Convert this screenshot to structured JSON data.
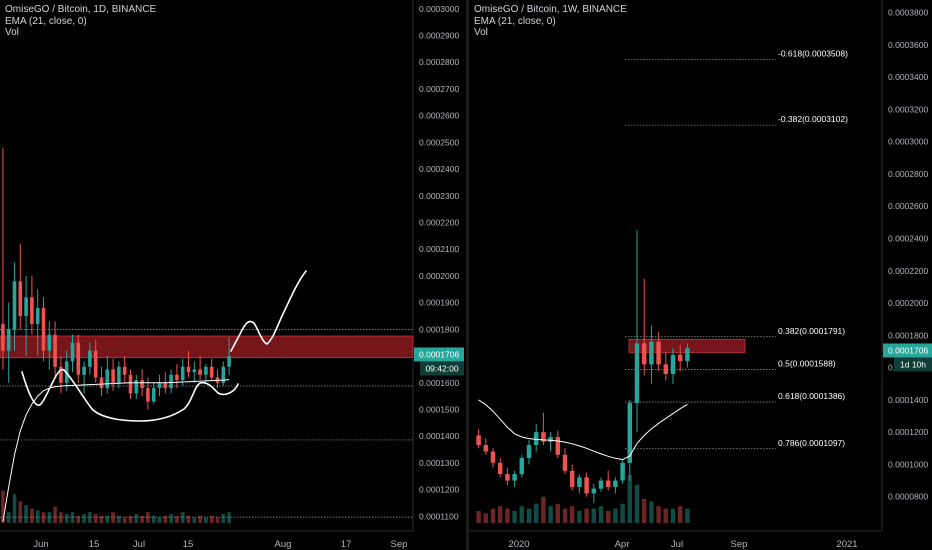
{
  "colors": {
    "up": "#26a69a",
    "down": "#ef5350",
    "zone_fill": "#8b1a1f",
    "zone_stroke": "#c8323a",
    "ema": "#ffffff",
    "grid": "#9e9e9e",
    "badge_green": "#26a69a",
    "axis_text": "#b2b5be"
  },
  "chart_data": [
    {
      "type": "candlestick",
      "title": "OmiseGO / Bitcoin, 1D, BINANCE",
      "legend": [
        "EMA (21, close, 0)",
        "Vol"
      ],
      "price_axis_ticks": [
        "0.0003000",
        "0.0002900",
        "0.0002800",
        "0.0002700",
        "0.0002600",
        "0.0002500",
        "0.0002400",
        "0.0002300",
        "0.0002200",
        "0.0002100",
        "0.0002000",
        "0.0001900",
        "0.0001800",
        "0.0001700",
        "0.0001600",
        "0.0001500",
        "0.0001400",
        "0.0001300",
        "0.0001200",
        "0.0001100"
      ],
      "price_axis_tick_values": [
        0.0003,
        0.00029,
        0.00028,
        0.00027,
        0.00026,
        0.00025,
        0.00024,
        0.00023,
        0.00022,
        0.00021,
        0.0002,
        0.00019,
        0.00018,
        0.00017,
        0.00016,
        0.00015,
        0.00014,
        0.00013,
        0.00012,
        0.00011
      ],
      "x_ticks": [
        "Jun",
        "15",
        "Jul",
        "15",
        "Aug",
        "17",
        "Sep"
      ],
      "ylim": [
        0.0001075,
        0.0003018
      ],
      "last_price": "0.0001706",
      "last_price_value": 0.0001706,
      "countdown": "09:42:00",
      "resistance_zone": [
        0.0001694,
        0.0001775
      ],
      "horizontal_levels": [
        0.00018,
        0.0001588,
        0.0001386,
        0.0001097
      ],
      "candles": [
        [
          0.000182,
          0.000248,
          0.000165,
          0.000172
        ],
        [
          0.000172,
          0.00019,
          0.00016,
          0.00018
        ],
        [
          0.00018,
          0.000205,
          0.000172,
          0.000198
        ],
        [
          0.000198,
          0.000212,
          0.00018,
          0.000185
        ],
        [
          0.000185,
          0.0002,
          0.00017,
          0.000192
        ],
        [
          0.000192,
          0.0002,
          0.000178,
          0.000182
        ],
        [
          0.000182,
          0.000195,
          0.00017,
          0.000188
        ],
        [
          0.000188,
          0.000192,
          0.000168,
          0.000172
        ],
        [
          0.000172,
          0.000183,
          0.000165,
          0.000178
        ],
        [
          0.000178,
          0.000183,
          0.000162,
          0.000166
        ],
        [
          0.000166,
          0.00017,
          0.000156,
          0.00016
        ],
        [
          0.00016,
          0.000172,
          0.000157,
          0.000168
        ],
        [
          0.000168,
          0.000178,
          0.000164,
          0.000175
        ],
        [
          0.000175,
          0.000178,
          0.00016,
          0.000163
        ],
        [
          0.000163,
          0.000168,
          0.000156,
          0.000166
        ],
        [
          0.000166,
          0.000175,
          0.000163,
          0.000172
        ],
        [
          0.000172,
          0.000176,
          0.00016,
          0.000162
        ],
        [
          0.000162,
          0.000166,
          0.000155,
          0.000158
        ],
        [
          0.000158,
          0.00017,
          0.000156,
          0.000165
        ],
        [
          0.000165,
          0.000169,
          0.000157,
          0.00016
        ],
        [
          0.00016,
          0.000168,
          0.000158,
          0.000166
        ],
        [
          0.000166,
          0.00017,
          0.00016,
          0.000163
        ],
        [
          0.000163,
          0.000165,
          0.000154,
          0.000156
        ],
        [
          0.000156,
          0.000163,
          0.000154,
          0.000161
        ],
        [
          0.000161,
          0.000165,
          0.000155,
          0.000158
        ],
        [
          0.000158,
          0.000162,
          0.00015,
          0.000153
        ],
        [
          0.000153,
          0.00016,
          0.000152,
          0.000158
        ],
        [
          0.000158,
          0.000163,
          0.000155,
          0.00016
        ],
        [
          0.00016,
          0.000164,
          0.000156,
          0.000158
        ],
        [
          0.000158,
          0.000165,
          0.000156,
          0.000163
        ],
        [
          0.000163,
          0.000167,
          0.000158,
          0.000161
        ],
        [
          0.000161,
          0.000169,
          0.000159,
          0.000166
        ],
        [
          0.000166,
          0.000172,
          0.000162,
          0.000164
        ],
        [
          0.000164,
          0.000168,
          0.00016,
          0.000165
        ],
        [
          0.000165,
          0.00017,
          0.000161,
          0.000163
        ],
        [
          0.000163,
          0.000167,
          0.00016,
          0.000166
        ],
        [
          0.000166,
          0.000169,
          0.000161,
          0.000162
        ],
        [
          0.000162,
          0.000165,
          0.000158,
          0.00016
        ],
        [
          0.00016,
          0.000168,
          0.000159,
          0.000166
        ],
        [
          0.000166,
          0.000177,
          0.000163,
          0.00017
        ]
      ],
      "volume_rel": [
        0.9,
        0.3,
        0.8,
        0.6,
        0.5,
        0.4,
        0.35,
        0.3,
        0.3,
        0.45,
        0.3,
        0.25,
        0.3,
        0.2,
        0.25,
        0.3,
        0.25,
        0.2,
        0.2,
        0.3,
        0.2,
        0.15,
        0.2,
        0.25,
        0.2,
        0.3,
        0.2,
        0.15,
        0.2,
        0.25,
        0.2,
        0.3,
        0.2,
        0.15,
        0.2,
        0.15,
        0.2,
        0.15,
        0.25,
        0.3
      ],
      "ema": [
        0.000108,
        0.000121,
        0.000133,
        0.000142,
        0.000148,
        0.000152,
        0.000155,
        0.000157,
        0.000158,
        0.0001585,
        0.0001588,
        0.0001589,
        0.000159,
        0.0001591,
        0.0001592,
        0.0001593,
        0.0001594,
        0.0001595,
        0.0001596,
        0.0001597,
        0.0001598,
        0.0001599,
        0.00016,
        0.00016,
        0.00016,
        0.00016,
        0.00016,
        0.00016,
        0.00016,
        0.0001601,
        0.0001602,
        0.0001603,
        0.0001604,
        0.0001605,
        0.0001606,
        0.0001607,
        0.0001608,
        0.0001609,
        0.000161,
        0.0001612
      ]
    },
    {
      "type": "candlestick",
      "title": "OmiseGO / Bitcoin, 1W, BINANCE",
      "legend": [
        "EMA (21, close, 0)",
        "Vol"
      ],
      "price_axis_ticks": [
        "0.0003800",
        "0.0003600",
        "0.0003400",
        "0.0003200",
        "0.0003000",
        "0.0002800",
        "0.0002600",
        "0.0002400",
        "0.0002200",
        "0.0002000",
        "0.0001800",
        "0.0001600",
        "0.0001400",
        "0.0001200",
        "0.0001000",
        "0.0000800"
      ],
      "price_axis_tick_values": [
        0.00038,
        0.00036,
        0.00034,
        0.00032,
        0.0003,
        0.00028,
        0.00026,
        0.00024,
        0.00022,
        0.0002,
        0.00018,
        0.00016,
        0.00014,
        0.00012,
        0.0001,
        8e-05
      ],
      "x_ticks": [
        "2020",
        "Apr",
        "Jul",
        "Sep",
        "2021"
      ],
      "ylim": [
        6.37e-05,
        0.0003853
      ],
      "last_price": "0.0001706",
      "last_price_value": 0.0001706,
      "countdown": "1d 10h",
      "resistance_zone": [
        0.0001694,
        0.0001775
      ],
      "fib_levels": [
        {
          "label": "-0.618(0.0003508)",
          "value": 0.0003508
        },
        {
          "label": "-0.382(0.0003102)",
          "value": 0.0003102
        },
        {
          "label": "0.382(0.0001791)",
          "value": 0.0001791
        },
        {
          "label": "0.5(0.0001588)",
          "value": 0.0001588
        },
        {
          "label": "0.618(0.0001386)",
          "value": 0.0001386
        },
        {
          "label": "0.786(0.0001097)",
          "value": 0.0001097
        }
      ],
      "candles": [
        [
          0.000118,
          0.000122,
          0.00011,
          0.000112
        ],
        [
          0.000112,
          0.000116,
          0.000106,
          0.000108
        ],
        [
          0.000108,
          0.00011,
          9.8e-05,
          0.000101
        ],
        [
          0.000101,
          0.000104,
          9.2e-05,
          9.4e-05
        ],
        [
          9.4e-05,
          9.8e-05,
          8.7e-05,
          9e-05
        ],
        [
          9e-05,
          9.6e-05,
          8.6e-05,
          9.4e-05
        ],
        [
          9.4e-05,
          0.000106,
          9.2e-05,
          0.000104
        ],
        [
          0.000104,
          0.000115,
          0.0001,
          0.000112
        ],
        [
          0.000112,
          0.000125,
          0.000108,
          0.00012
        ],
        [
          0.00012,
          0.000132,
          0.000112,
          0.000114
        ],
        [
          0.000114,
          0.00012,
          0.000108,
          0.000117
        ],
        [
          0.000117,
          0.000121,
          0.000104,
          0.000106
        ],
        [
          0.000106,
          0.00011,
          9.4e-05,
          9.6e-05
        ],
        [
          9.6e-05,
          0.0001,
          8.4e-05,
          8.6e-05
        ],
        [
          8.6e-05,
          9.4e-05,
          8.2e-05,
          9.2e-05
        ],
        [
          9.2e-05,
          9.5e-05,
          8e-05,
          8.2e-05
        ],
        [
          8.2e-05,
          8.8e-05,
          7.6e-05,
          8.5e-05
        ],
        [
          8.5e-05,
          9.2e-05,
          8.3e-05,
          9e-05
        ],
        [
          9e-05,
          9.6e-05,
          8.4e-05,
          8.6e-05
        ],
        [
          8.6e-05,
          9.2e-05,
          8.2e-05,
          9e-05
        ],
        [
          9e-05,
          0.000103,
          8.8e-05,
          0.000101
        ],
        [
          0.000101,
          0.00014,
          9e-05,
          0.000138
        ],
        [
          0.000138,
          0.000245,
          0.00012,
          0.000175
        ],
        [
          0.000175,
          0.000215,
          0.000155,
          0.000162
        ],
        [
          0.000162,
          0.000186,
          0.00015,
          0.000176
        ],
        [
          0.000176,
          0.000182,
          0.000158,
          0.000162
        ],
        [
          0.000162,
          0.00017,
          0.000152,
          0.000156
        ],
        [
          0.000156,
          0.000172,
          0.00015,
          0.000168
        ],
        [
          0.000168,
          0.000174,
          0.000158,
          0.000164
        ],
        [
          0.000164,
          0.000175,
          0.00016,
          0.000172
        ]
      ],
      "volume_rel": [
        0.25,
        0.2,
        0.3,
        0.35,
        0.3,
        0.25,
        0.35,
        0.3,
        0.4,
        0.55,
        0.35,
        0.4,
        0.3,
        0.35,
        0.25,
        0.3,
        0.3,
        0.35,
        0.25,
        0.3,
        0.4,
        1.0,
        0.8,
        0.5,
        0.45,
        0.35,
        0.3,
        0.3,
        0.35,
        0.3
      ],
      "ema": [
        0.00014,
        0.000137,
        0.000133,
        0.000128,
        0.000123,
        0.000119,
        0.000117,
        0.000116,
        0.0001155,
        0.0001152,
        0.000115,
        0.0001145,
        0.0001138,
        0.0001128,
        0.0001115,
        0.00011,
        0.0001082,
        0.0001065,
        0.000105,
        0.0001038,
        0.000103,
        0.0001052,
        0.000113,
        0.000118,
        0.000122,
        0.0001255,
        0.0001285,
        0.0001315,
        0.0001345,
        0.0001372
      ]
    }
  ]
}
